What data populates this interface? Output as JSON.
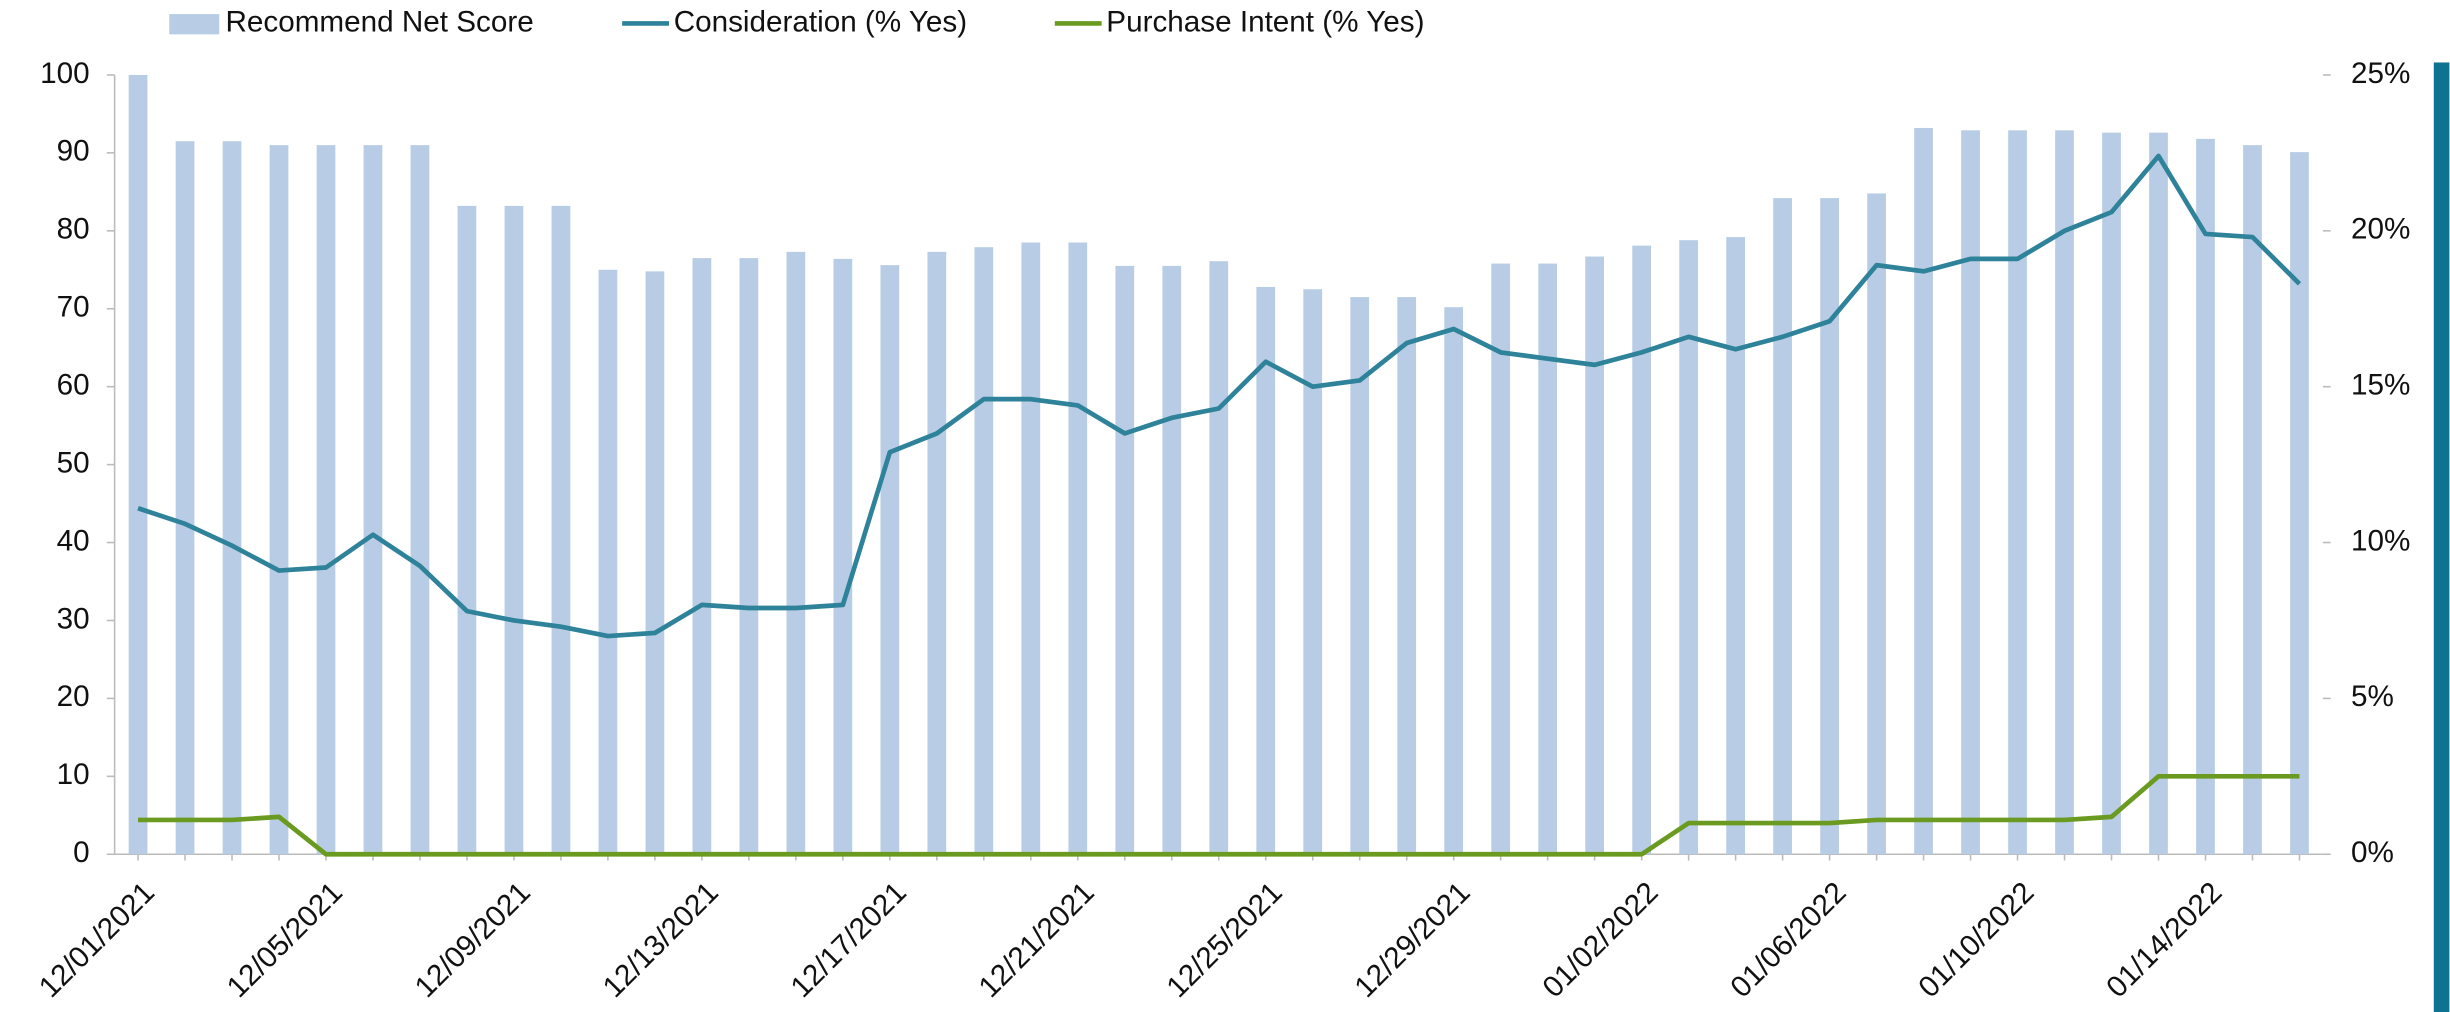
{
  "chart_data": {
    "type": "bar_line",
    "categories": [
      "12/01/2021",
      null,
      null,
      null,
      "12/05/2021",
      null,
      null,
      null,
      "12/09/2021",
      null,
      null,
      null,
      "12/13/2021",
      null,
      null,
      null,
      "12/17/2021",
      null,
      null,
      null,
      "12/21/2021",
      null,
      null,
      null,
      "12/25/2021",
      null,
      null,
      null,
      "12/29/2021",
      null,
      null,
      null,
      "01/02/2022",
      null,
      null,
      null,
      "01/06/2022",
      null,
      null,
      null,
      "01/10/2022",
      null,
      null,
      null,
      "01/14/2022",
      null,
      null
    ],
    "series": [
      {
        "name": "Recommend Net Score",
        "type": "bar",
        "color": "#b8cde5",
        "values": [
          100,
          91.5,
          91.5,
          91,
          91,
          91,
          91,
          83.2,
          83.2,
          83.2,
          75,
          74.8,
          76.5,
          76.5,
          77.3,
          76.4,
          75.6,
          77.3,
          77.9,
          78.5,
          78.5,
          75.5,
          75.5,
          76.1,
          72.8,
          72.5,
          71.5,
          71.5,
          70.2,
          75.8,
          75.8,
          76.7,
          78.1,
          78.8,
          79.2,
          84.2,
          84.2,
          84.8,
          93.2,
          92.9,
          92.9,
          92.9,
          92.6,
          92.6,
          91.8,
          91,
          90.1
        ]
      },
      {
        "name": "Consideration (% Yes)",
        "type": "line",
        "axis": "y2",
        "color": "#2e8299",
        "values": [
          11.1,
          10.6,
          9.9,
          9.1,
          9.2,
          10.25,
          9.25,
          7.8,
          7.5,
          7.3,
          7.0,
          7.1,
          8.0,
          7.9,
          7.9,
          8.0,
          12.9,
          13.5,
          14.6,
          14.6,
          14.4,
          13.5,
          14.0,
          14.3,
          15.8,
          15.0,
          15.2,
          16.4,
          16.85,
          16.1,
          15.9,
          15.7,
          16.1,
          16.6,
          16.2,
          16.6,
          17.1,
          18.9,
          18.7,
          19.1,
          19.1,
          20.0,
          20.6,
          22.4,
          19.9,
          19.8,
          18.3
        ]
      },
      {
        "name": "Purchase Intent (% Yes)",
        "type": "line",
        "axis": "y2",
        "color": "#6a9a1f",
        "values": [
          1.1,
          1.1,
          1.1,
          1.2,
          0,
          0,
          0,
          0,
          0,
          0,
          0,
          0,
          0,
          0,
          0,
          0,
          0,
          0,
          0,
          0,
          0,
          0,
          0,
          0,
          0,
          0,
          0,
          0,
          0,
          0,
          0,
          0,
          0,
          1.0,
          1.0,
          1.0,
          1.0,
          1.1,
          1.1,
          1.1,
          1.1,
          1.1,
          1.2,
          2.5,
          2.5,
          2.5,
          2.5
        ]
      }
    ],
    "ylim": [
      0,
      100
    ],
    "yticks": [
      0,
      10,
      20,
      30,
      40,
      50,
      60,
      70,
      80,
      90,
      100
    ],
    "y2lim": [
      0,
      25
    ],
    "y2ticks": [
      {
        "value": 0,
        "label": "0%"
      },
      {
        "value": 5,
        "label": "5%"
      },
      {
        "value": 10,
        "label": "10%"
      },
      {
        "value": 15,
        "label": "15%"
      },
      {
        "value": 20,
        "label": "20%"
      },
      {
        "value": 25,
        "label": "25%"
      }
    ],
    "legend": "top-left",
    "grid": false
  }
}
